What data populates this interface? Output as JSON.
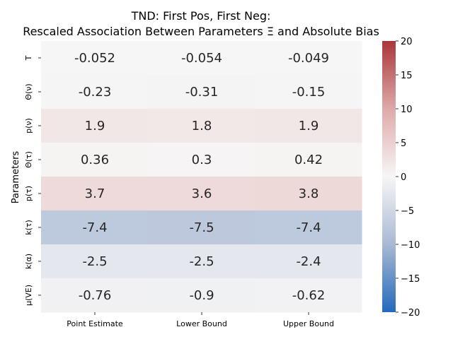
{
  "chart_data": {
    "type": "heatmap",
    "title_line1": "TND: First Pos, First Neg:",
    "title_line2": "Rescaled Association Between Parameters Ξ and Absolute Bias",
    "ylabel": "Parameters",
    "xlabel": "",
    "columns": [
      "Point Estimate",
      "Lower Bound",
      "Upper Bound"
    ],
    "rows": [
      "T",
      "Θ(ν)",
      "p(ν)",
      "Θ(τ)",
      "p(τ)",
      "k(τ)",
      "k(α)",
      "μ(VE)"
    ],
    "values": [
      [
        -0.052,
        -0.054,
        -0.049
      ],
      [
        -0.23,
        -0.31,
        -0.15
      ],
      [
        1.9,
        1.8,
        1.9
      ],
      [
        0.36,
        0.3,
        0.42
      ],
      [
        3.7,
        3.6,
        3.8
      ],
      [
        -7.4,
        -7.5,
        -7.4
      ],
      [
        -2.5,
        -2.5,
        -2.4
      ],
      [
        -0.76,
        -0.9,
        -0.62
      ]
    ],
    "value_labels": [
      [
        "-0.052",
        "-0.054",
        "-0.049"
      ],
      [
        "-0.23",
        "-0.31",
        "-0.15"
      ],
      [
        "1.9",
        "1.8",
        "1.9"
      ],
      [
        "0.36",
        "0.3",
        "0.42"
      ],
      [
        "3.7",
        "3.6",
        "3.8"
      ],
      [
        "-7.4",
        "-7.5",
        "-7.4"
      ],
      [
        "-2.5",
        "-2.5",
        "-2.4"
      ],
      [
        "-0.76",
        "-0.9",
        "-0.62"
      ]
    ],
    "colorbar": {
      "colormap": "vlag",
      "vmin": -20,
      "vmax": 20,
      "ticks": [
        20,
        15,
        10,
        5,
        0,
        -5,
        -10,
        -15,
        -20
      ],
      "tick_labels": [
        "20",
        "15",
        "10",
        "5",
        "0",
        "−5",
        "−10",
        "−15",
        "−20"
      ]
    }
  }
}
